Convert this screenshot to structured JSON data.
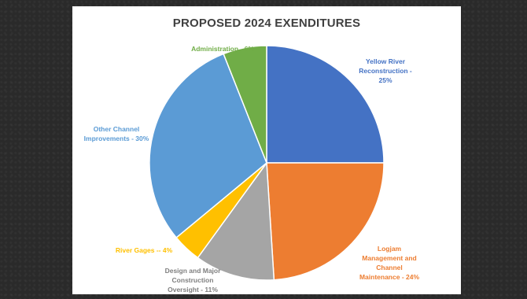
{
  "chart_data": {
    "type": "pie",
    "title": "PROPOSED 2024 EXENDITURES",
    "slices": [
      {
        "label": "Yellow River Reconstruction - 25%",
        "value": 25,
        "color": "#4472c4"
      },
      {
        "label": "Logjam Management and Channel Maintenance - 24%",
        "value": 24,
        "color": "#ed7d31"
      },
      {
        "label": "Design and Major Construction Oversight - 11%",
        "value": 11,
        "color": "#a5a5a5"
      },
      {
        "label": "River Gages -- 4%",
        "value": 4,
        "color": "#ffc000"
      },
      {
        "label": "Other Channel Improvements - 30%",
        "value": 30,
        "color": "#5b9bd5"
      },
      {
        "label": "Administration - 6%",
        "value": 6,
        "color": "#70ad47"
      }
    ]
  },
  "labels": {
    "yellow_river": [
      "Yellow River",
      "Reconstruction -",
      "25%"
    ],
    "logjam": [
      "Logjam",
      "Management and",
      "Channel",
      "Maintenance - 24%"
    ],
    "design": [
      "Design and Major",
      "Construction",
      "Oversight - 11%"
    ],
    "gages": "River Gages -- 4%",
    "other": [
      "Other Channel",
      "Improvements - 30%"
    ],
    "admin": "Administration - 6%"
  }
}
